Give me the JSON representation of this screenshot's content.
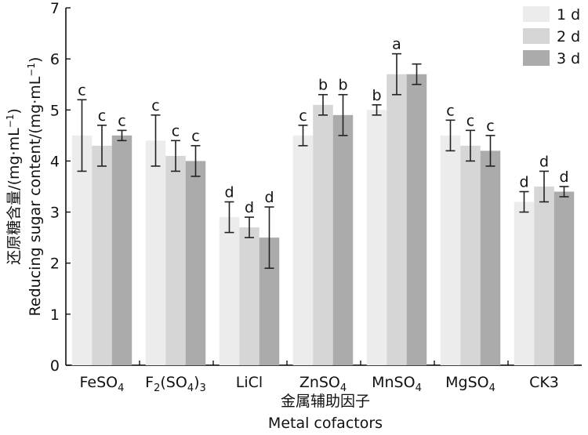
{
  "chart_data": {
    "type": "bar",
    "ylabel_cn": "还原糖含量/(mg·mL",
    "ylabel_cn_sup": "−1",
    "ylabel_cn_end": ")",
    "ylabel_en": "Reducing sugar content/(mg·mL",
    "ylabel_en_sup": "−1",
    "ylabel_en_end": ")",
    "xlabel_cn": "金属辅助因子",
    "xlabel_en": "Metal cofactors",
    "ylim": [
      0,
      7
    ],
    "yticks": [
      "0",
      "1",
      "2",
      "3",
      "4",
      "5",
      "6",
      "7"
    ],
    "legend_position": "top-right",
    "categories": [
      {
        "base": "FeSO",
        "parts": [
          [
            "FeSO",
            ""
          ],
          [
            "4",
            "sub"
          ]
        ]
      },
      {
        "base": "F2(SO4)3",
        "parts": [
          [
            "F",
            ""
          ],
          [
            "2",
            "sub"
          ],
          [
            "(SO",
            ""
          ],
          [
            "4",
            "sub"
          ],
          [
            ")",
            ""
          ],
          [
            "3",
            "sub"
          ]
        ]
      },
      {
        "base": "LiCl",
        "parts": [
          [
            "LiCl",
            ""
          ]
        ]
      },
      {
        "base": "ZnSO4",
        "parts": [
          [
            "ZnSO",
            ""
          ],
          [
            "4",
            "sub"
          ]
        ]
      },
      {
        "base": "MnSO4",
        "parts": [
          [
            "MnSO",
            ""
          ],
          [
            "4",
            "sub"
          ]
        ]
      },
      {
        "base": "MgSO4",
        "parts": [
          [
            "MgSO",
            ""
          ],
          [
            "4",
            "sub"
          ]
        ]
      },
      {
        "base": "CK3",
        "parts": [
          [
            "CK3",
            ""
          ]
        ]
      }
    ],
    "series": [
      {
        "name": "1 d",
        "color": "#ececec",
        "values": [
          4.5,
          4.4,
          2.9,
          4.5,
          5.0,
          4.5,
          3.2
        ],
        "errors": [
          0.7,
          0.5,
          0.3,
          0.2,
          0.1,
          0.3,
          0.2
        ],
        "labels": [
          "c",
          "c",
          "d",
          "c",
          "b",
          "c",
          "d"
        ]
      },
      {
        "name": "2 d",
        "color": "#d6d6d6",
        "values": [
          4.3,
          4.1,
          2.7,
          5.1,
          5.7,
          4.3,
          3.5
        ],
        "errors": [
          0.4,
          0.3,
          0.2,
          0.2,
          0.4,
          0.3,
          0.3
        ],
        "labels": [
          "c",
          "c",
          "d",
          "b",
          "a",
          "c",
          "d"
        ]
      },
      {
        "name": "3 d",
        "color": "#ababab",
        "values": [
          4.5,
          4.0,
          2.5,
          4.9,
          5.7,
          4.2,
          3.4
        ],
        "errors": [
          0.1,
          0.3,
          0.6,
          0.4,
          0.2,
          0.3,
          0.1
        ],
        "labels": [
          "c",
          "c",
          "d",
          "b",
          "",
          "c",
          "d"
        ]
      }
    ]
  }
}
